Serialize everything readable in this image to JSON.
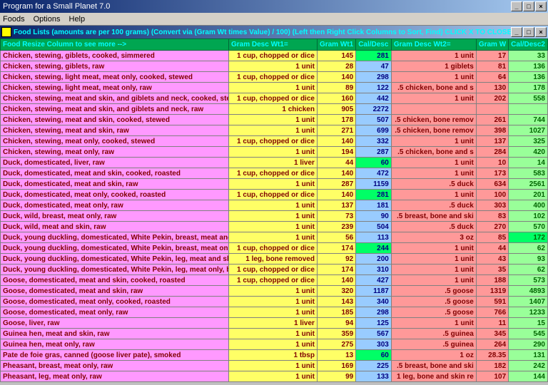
{
  "window": {
    "title": "Program for a Small Planet 7.0",
    "min": "_",
    "max": "□",
    "close": "×"
  },
  "menu": {
    "items": [
      "Foods",
      "Options",
      "Help"
    ]
  },
  "subtitle": {
    "text": "Food Lists (amounts are per 100 grams)  (Convert via (Gram Wt times Value) / 100)  (Left then Right Click Columns to Sort, Find)  CLICK X TO CLOSE -->"
  },
  "headers": {
    "food": "Food            Resize Column to see more -->",
    "gd1": "Gram Desc Wt1=",
    "gw1": "Gram Wt1",
    "cd1": "Cal/Desc",
    "gd2": "Gram Desc Wt2=",
    "gw2": "Gram W",
    "cd2": "Cal/Desc2"
  },
  "rows": [
    {
      "food": "Chicken, stewing, giblets, cooked, simmered",
      "gd1": "1 cup, chopped or dice",
      "gw1": 145,
      "cd1": 281,
      "cd1hl": true,
      "gd2": "1 unit",
      "gw2": 17,
      "cd2": 33
    },
    {
      "food": "Chicken, stewing, giblets, raw",
      "gd1": "1 unit",
      "gw1": 28,
      "cd1": 47,
      "gd2": "1 giblets",
      "gw2": 81,
      "cd2": 136
    },
    {
      "food": "Chicken, stewing, light meat, meat only, cooked, stewed",
      "gd1": "1 cup, chopped or dice",
      "gw1": 140,
      "cd1": 298,
      "gd2": "1 unit",
      "gw2": 64,
      "cd2": 136
    },
    {
      "food": "Chicken, stewing, light meat, meat only, raw",
      "gd1": "1 unit",
      "gw1": 89,
      "cd1": 122,
      "gd2": ".5 chicken, bone and s",
      "gw2": 130,
      "cd2": 178
    },
    {
      "food": "Chicken, stewing, meat and skin, and giblets and neck, cooked, stew",
      "gd1": "1 cup, chopped or dice",
      "gw1": 160,
      "cd1": 442,
      "gd2": "1 unit",
      "gw2": 202,
      "cd2": 558
    },
    {
      "food": "Chicken, stewing, meat and skin, and giblets and neck, raw",
      "gd1": "1 chicken",
      "gw1": 905,
      "cd1": 2272,
      "gd2": "",
      "gw2": "",
      "cd2": ""
    },
    {
      "food": "Chicken, stewing, meat and skin, cooked, stewed",
      "gd1": "1 unit",
      "gw1": 178,
      "cd1": 507,
      "gd2": ".5 chicken, bone remov",
      "gw2": 261,
      "cd2": 744
    },
    {
      "food": "Chicken, stewing, meat and skin, raw",
      "gd1": "1 unit",
      "gw1": 271,
      "cd1": 699,
      "gd2": ".5 chicken, bone remov",
      "gw2": 398,
      "cd2": 1027
    },
    {
      "food": "Chicken, stewing, meat only, cooked, stewed",
      "gd1": "1 cup, chopped or dice",
      "gw1": 140,
      "cd1": 332,
      "gd2": "1 unit",
      "gw2": 137,
      "cd2": 325
    },
    {
      "food": "Chicken, stewing, meat only, raw",
      "gd1": "1 unit",
      "gw1": 194,
      "cd1": 287,
      "gd2": ".5 chicken, bone and s",
      "gw2": 284,
      "cd2": 420
    },
    {
      "food": "Duck, domesticated, liver, raw",
      "gd1": "1 liver",
      "gw1": 44,
      "cd1": 60,
      "cd1hl": true,
      "gd2": "1 unit",
      "gw2": 10,
      "cd2": 14
    },
    {
      "food": "Duck, domesticated, meat and skin, cooked, roasted",
      "gd1": "1 cup, chopped or dice",
      "gw1": 140,
      "cd1": 472,
      "gd2": "1 unit",
      "gw2": 173,
      "cd2": 583
    },
    {
      "food": "Duck, domesticated, meat and skin, raw",
      "gd1": "1 unit",
      "gw1": 287,
      "cd1": 1159,
      "gd2": ".5 duck",
      "gw2": 634,
      "cd2": 2561
    },
    {
      "food": "Duck, domesticated, meat only, cooked, roasted",
      "gd1": "1 cup, chopped or dice",
      "gw1": 140,
      "cd1": 281,
      "cd1hl": true,
      "gd2": "1 unit",
      "gw2": 100,
      "cd2": 201
    },
    {
      "food": "Duck, domesticated, meat only, raw",
      "gd1": "1 unit",
      "gw1": 137,
      "cd1": 181,
      "gd2": ".5 duck",
      "gw2": 303,
      "cd2": 400
    },
    {
      "food": "Duck, wild, breast, meat only, raw",
      "gd1": "1 unit",
      "gw1": 73,
      "cd1": 90,
      "gd2": ".5 breast, bone and ski",
      "gw2": 83,
      "cd2": 102
    },
    {
      "food": "Duck, wild, meat and skin, raw",
      "gd1": "1 unit",
      "gw1": 239,
      "cd1": 504,
      "gd2": ".5 duck",
      "gw2": 270,
      "cd2": 570
    },
    {
      "food": "Duck, young duckling, domesticated, White Pekin, breast, meat and",
      "gd1": "1 unit",
      "gw1": 56,
      "cd1": 113,
      "gd2": "3 oz",
      "gw2": 85,
      "cd2": 172,
      "cd2hl": true
    },
    {
      "food": "Duck, young duckling, domesticated, White Pekin, breast, meat only",
      "gd1": "1 cup, chopped or dice",
      "gw1": 174,
      "cd1": 244,
      "cd1hl": true,
      "gd2": "1 unit",
      "gw2": 44,
      "cd2": 62
    },
    {
      "food": "Duck, young duckling, domesticated, White Pekin, leg, meat and ski",
      "gd1": "1 leg, bone removed",
      "gw1": 92,
      "cd1": 200,
      "gd2": "1 unit",
      "gw2": 43,
      "cd2": 93
    },
    {
      "food": "Duck, young duckling, domesticated, White Pekin, leg, meat only, b",
      "gd1": "1 cup, chopped or dice",
      "gw1": 174,
      "cd1": 310,
      "gd2": "1 unit",
      "gw2": 35,
      "cd2": 62
    },
    {
      "food": "Goose, domesticated, meat and skin, cooked, roasted",
      "gd1": "1 cup, chopped or dice",
      "gw1": 140,
      "cd1": 427,
      "gd2": "1 unit",
      "gw2": 188,
      "cd2": 573
    },
    {
      "food": "Goose, domesticated, meat and skin, raw",
      "gd1": "1 unit",
      "gw1": 320,
      "cd1": 1187,
      "gd2": ".5 goose",
      "gw2": 1319,
      "cd2": 4893
    },
    {
      "food": "Goose, domesticated, meat only, cooked, roasted",
      "gd1": "1 unit",
      "gw1": 143,
      "cd1": 340,
      "gd2": ".5 goose",
      "gw2": 591,
      "cd2": 1407
    },
    {
      "food": "Goose, domesticated, meat only, raw",
      "gd1": "1 unit",
      "gw1": 185,
      "cd1": 298,
      "gd2": ".5 goose",
      "gw2": 766,
      "cd2": 1233
    },
    {
      "food": "Goose, liver, raw",
      "gd1": "1 liver",
      "gw1": 94,
      "cd1": 125,
      "gd2": "1 unit",
      "gw2": 11,
      "cd2": 15
    },
    {
      "food": "Guinea hen, meat and skin, raw",
      "gd1": "1 unit",
      "gw1": 359,
      "cd1": 567,
      "gd2": ".5 guinea",
      "gw2": 345,
      "cd2": 545
    },
    {
      "food": "Guinea hen, meat only, raw",
      "gd1": "1 unit",
      "gw1": 275,
      "cd1": 303,
      "gd2": ".5 guinea",
      "gw2": 264,
      "cd2": 290
    },
    {
      "food": "Pate de foie gras, canned (goose liver pate), smoked",
      "gd1": "1 tbsp",
      "gw1": 13,
      "cd1": 60,
      "cd1hl": true,
      "gd2": "1 oz",
      "gw2": "28.35",
      "cd2": 131
    },
    {
      "food": "Pheasant, breast, meat only, raw",
      "gd1": "1 unit",
      "gw1": 169,
      "cd1": 225,
      "gd2": ".5 breast, bone and ski",
      "gw2": 182,
      "cd2": 242
    },
    {
      "food": "Pheasant, leg, meat only, raw",
      "gd1": "1 unit",
      "gw1": 99,
      "cd1": 133,
      "gd2": "1 leg, bone and skin re",
      "gw2": 107,
      "cd2": 144
    }
  ]
}
